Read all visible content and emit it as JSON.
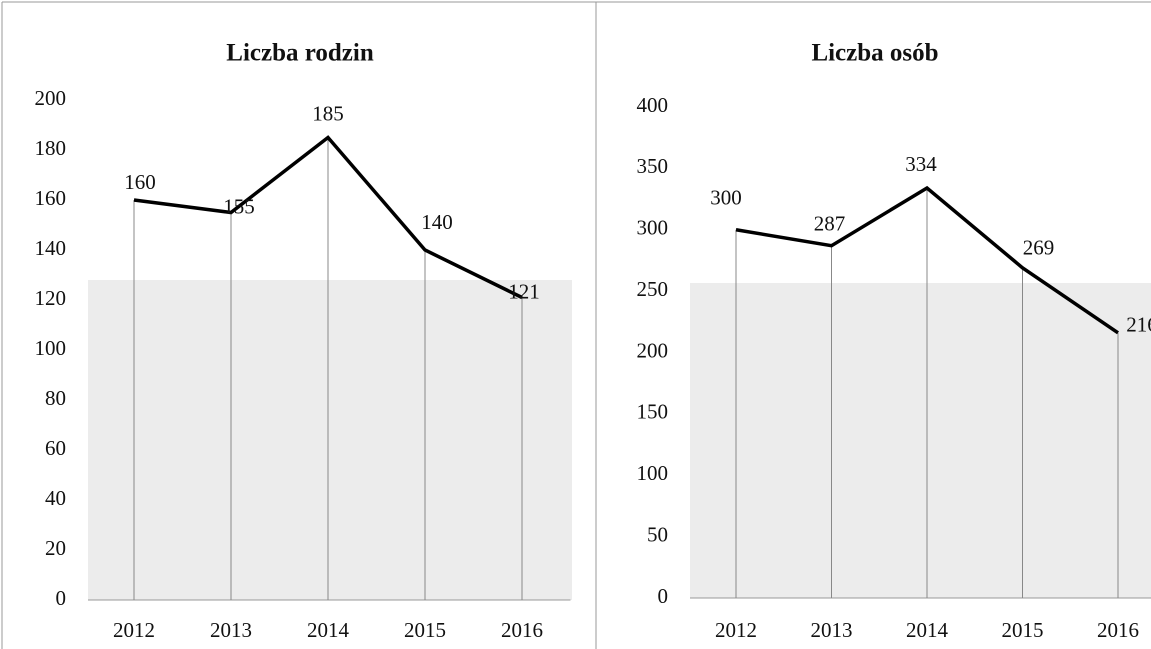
{
  "chart_data": [
    {
      "type": "line",
      "title": "Liczba rodzin",
      "categories": [
        "2012",
        "2013",
        "2014",
        "2015",
        "2016"
      ],
      "values": [
        160,
        155,
        185,
        140,
        121
      ],
      "color": "#000000",
      "ylim": [
        0,
        200
      ],
      "yticks": [
        0,
        20,
        40,
        60,
        80,
        100,
        120,
        140,
        160,
        180,
        200
      ]
    },
    {
      "type": "line",
      "title": "Liczba osób",
      "categories": [
        "2012",
        "2013",
        "2014",
        "2015",
        "2016"
      ],
      "values": [
        300,
        287,
        334,
        269,
        216
      ],
      "color": "#000000",
      "ylim": [
        0,
        400
      ],
      "yticks": [
        0,
        50,
        100,
        150,
        200,
        250,
        300,
        350,
        400
      ]
    }
  ]
}
